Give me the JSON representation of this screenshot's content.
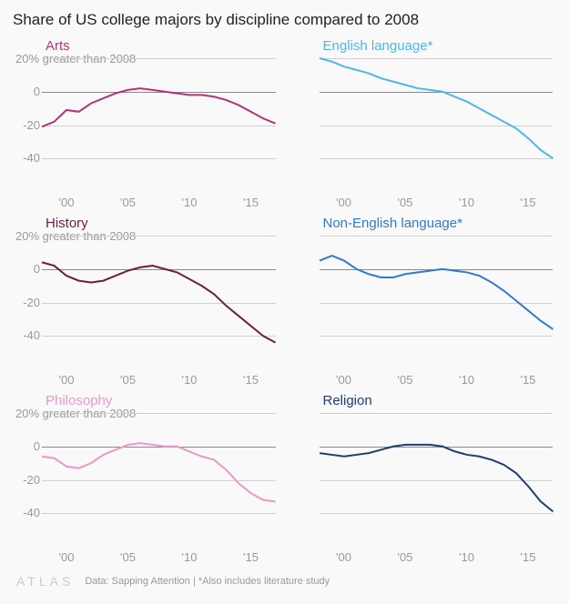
{
  "title": "Share of US college majors by discipline compared to 2008",
  "background_color": "#f9f9f9",
  "y_axis": {
    "label_20": "20% greater than 2008",
    "label_0": "0",
    "label_neg20": "-20",
    "label_neg40": "-40",
    "ylim": [
      -60,
      20
    ],
    "gridlines": [
      20,
      0,
      -20,
      -40
    ],
    "zero_line_y": 0,
    "label_color": "#999999",
    "gridline_color": "#d0d0d0",
    "zero_line_color": "#888888",
    "label_fontsize": 13
  },
  "x_axis": {
    "xlim": [
      1998,
      2017
    ],
    "ticks": [
      2000,
      2005,
      2010,
      2015
    ],
    "tick_labels": [
      "'00",
      "'05",
      "'10",
      "'15"
    ],
    "label_color": "#999999",
    "label_fontsize": 13
  },
  "panels": [
    {
      "id": "arts",
      "title": "Arts",
      "color": "#b43476",
      "show_y_labels": true,
      "line_width": 2,
      "years": [
        1998,
        1999,
        2000,
        2001,
        2002,
        2003,
        2004,
        2005,
        2006,
        2007,
        2008,
        2009,
        2010,
        2011,
        2012,
        2013,
        2014,
        2015,
        2016,
        2017
      ],
      "values": [
        -21,
        -18,
        -11,
        -12,
        -7,
        -4,
        -1,
        1,
        2,
        1,
        0,
        -1,
        -2,
        -2,
        -3,
        -5,
        -8,
        -12,
        -16,
        -19
      ]
    },
    {
      "id": "english",
      "title": "English language*",
      "color": "#4fb6e8",
      "show_y_labels": false,
      "line_width": 2,
      "years": [
        1998,
        1999,
        2000,
        2001,
        2002,
        2003,
        2004,
        2005,
        2006,
        2007,
        2008,
        2009,
        2010,
        2011,
        2012,
        2013,
        2014,
        2015,
        2016,
        2017
      ],
      "values": [
        20,
        18,
        15,
        13,
        11,
        8,
        6,
        4,
        2,
        1,
        0,
        -3,
        -6,
        -10,
        -14,
        -18,
        -22,
        -28,
        -35,
        -40
      ]
    },
    {
      "id": "history",
      "title": "History",
      "color": "#6a1f44",
      "show_y_labels": true,
      "line_width": 2,
      "years": [
        1998,
        1999,
        2000,
        2001,
        2002,
        2003,
        2004,
        2005,
        2006,
        2007,
        2008,
        2009,
        2010,
        2011,
        2012,
        2013,
        2014,
        2015,
        2016,
        2017
      ],
      "values": [
        4,
        2,
        -4,
        -7,
        -8,
        -7,
        -4,
        -1,
        1,
        2,
        0,
        -2,
        -6,
        -10,
        -15,
        -22,
        -28,
        -34,
        -40,
        -44
      ]
    },
    {
      "id": "nonenglish",
      "title": "Non-English language*",
      "color": "#2e7bd1",
      "show_y_labels": false,
      "line_width": 2,
      "years": [
        1998,
        1999,
        2000,
        2001,
        2002,
        2003,
        2004,
        2005,
        2006,
        2007,
        2008,
        2009,
        2010,
        2011,
        2012,
        2013,
        2014,
        2015,
        2016,
        2017
      ],
      "values": [
        5,
        8,
        5,
        0,
        -3,
        -5,
        -5,
        -3,
        -2,
        -1,
        0,
        -1,
        -2,
        -4,
        -8,
        -13,
        -19,
        -25,
        -31,
        -36
      ]
    },
    {
      "id": "philosophy",
      "title": "Philosophy",
      "color": "#e89ac6",
      "show_y_labels": true,
      "line_width": 2,
      "years": [
        1998,
        1999,
        2000,
        2001,
        2002,
        2003,
        2004,
        2005,
        2006,
        2007,
        2008,
        2009,
        2010,
        2011,
        2012,
        2013,
        2014,
        2015,
        2016,
        2017
      ],
      "values": [
        -6,
        -7,
        -12,
        -13,
        -10,
        -5,
        -2,
        1,
        2,
        1,
        0,
        0,
        -3,
        -6,
        -8,
        -14,
        -22,
        -28,
        -32,
        -33
      ]
    },
    {
      "id": "religion",
      "title": "Religion",
      "color": "#1c3f73",
      "show_y_labels": false,
      "line_width": 2,
      "years": [
        1998,
        1999,
        2000,
        2001,
        2002,
        2003,
        2004,
        2005,
        2006,
        2007,
        2008,
        2009,
        2010,
        2011,
        2012,
        2013,
        2014,
        2015,
        2016,
        2017
      ],
      "values": [
        -4,
        -5,
        -6,
        -5,
        -4,
        -2,
        0,
        1,
        1,
        1,
        0,
        -3,
        -5,
        -6,
        -8,
        -11,
        -16,
        -24,
        -33,
        -39
      ]
    }
  ],
  "footer": {
    "logo": "ATLAS",
    "logo_color": "#cccccc",
    "source": "Data: Sapping Attention | *Also includes literature study",
    "source_color": "#999999",
    "source_fontsize": 11
  },
  "chart_type": "small-multiples-line",
  "line_style": "solid",
  "title_fontsize": 17,
  "title_color": "#222222",
  "panel_title_fontsize": 15
}
